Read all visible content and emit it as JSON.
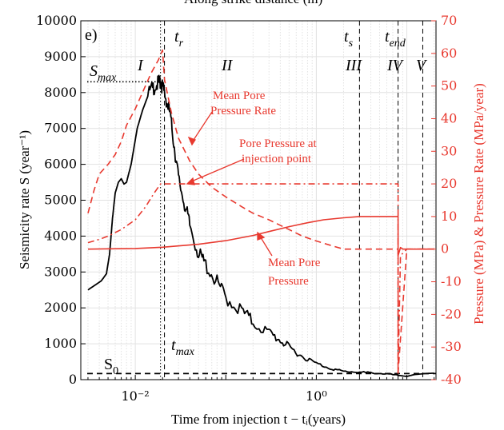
{
  "page_title_partial": "Along strike distance (m)",
  "panel_label": "e)",
  "colors": {
    "seismicity": "#000000",
    "pressure": "#e8392f",
    "grid": "#e2e2e2"
  },
  "chart_data": {
    "type": "line",
    "xlabel": "Time from injection t − tᵢ(years)",
    "ylabel_left": "Seismicity rate S (year⁻¹)",
    "ylabel_right": "Pressure (MPa) & Pressure Rate (MPa/year)",
    "x_scale": "log",
    "xlim": [
      0.0025,
      21
    ],
    "x_ticks": [
      {
        "value": 0.01,
        "label": "10⁻²"
      },
      {
        "value": 1,
        "label": "10⁰"
      }
    ],
    "ylim_left": [
      0,
      10000
    ],
    "y_ticks_left": [
      0,
      1000,
      2000,
      3000,
      4000,
      5000,
      6000,
      7000,
      8000,
      9000,
      10000
    ],
    "ylim_right": [
      -40,
      70
    ],
    "y_ticks_right": [
      -40,
      -30,
      -20,
      -10,
      0,
      10,
      20,
      30,
      40,
      50,
      60,
      70
    ],
    "grid": "on",
    "phase_labels": [
      "I",
      "II",
      "III",
      "IV",
      "V"
    ],
    "time_markers": [
      {
        "label": "t_r",
        "x": 0.021,
        "style": "dashed"
      },
      {
        "label": "t_max",
        "x": 0.019,
        "style": "dotted"
      },
      {
        "label": "t_s",
        "x": 3.0,
        "style": "dashed"
      },
      {
        "label": "t_end",
        "x": 8.0,
        "style": "dashed"
      },
      {
        "label": "",
        "x": 15.0,
        "style": "dashed"
      }
    ],
    "reference_lines": [
      {
        "label": "S_max",
        "y": 8300,
        "x_end": 0.019,
        "style": "dotted"
      },
      {
        "label": "S_0",
        "y": 170,
        "style": "dashed"
      }
    ],
    "annotations": [
      {
        "text_lines": [
          "Mean Pore",
          "Pressure Rate"
        ]
      },
      {
        "text_lines": [
          "Pore Pressure at",
          "injection point"
        ]
      },
      {
        "text_lines": [
          "Mean Pore",
          "Pressure"
        ]
      }
    ],
    "series": [
      {
        "axis": "left",
        "style": "solid",
        "x": [
          0.003,
          0.0042,
          0.0048,
          0.0052,
          0.0056,
          0.006,
          0.0065,
          0.007,
          0.0075,
          0.008,
          0.009,
          0.0105,
          0.012,
          0.014,
          0.016,
          0.018,
          0.019,
          0.02,
          0.022,
          0.024,
          0.027,
          0.03,
          0.035,
          0.04,
          0.05,
          0.06,
          0.08,
          0.1,
          0.15,
          0.2,
          0.3,
          0.4,
          0.5,
          0.7,
          1.0,
          1.5,
          2.0,
          3.0,
          4.0,
          6.0,
          8.0,
          10.0,
          12.0,
          16.0,
          20.0
        ],
        "values": [
          2500,
          2750,
          2950,
          3500,
          4500,
          5200,
          5500,
          5600,
          5450,
          5500,
          6000,
          7000,
          7500,
          7950,
          8150,
          8250,
          8300,
          8150,
          7800,
          7450,
          6500,
          5600,
          4900,
          4300,
          3500,
          3200,
          2700,
          2300,
          1900,
          1600,
          1300,
          1100,
          900,
          650,
          450,
          300,
          230,
          210,
          190,
          160,
          120,
          90,
          140,
          170,
          180
        ]
      },
      {
        "axis": "right",
        "style": "dashed",
        "x": [
          0.003,
          0.0035,
          0.004,
          0.005,
          0.006,
          0.007,
          0.008,
          0.01,
          0.012,
          0.015,
          0.018,
          0.02,
          0.021,
          0.025,
          0.03,
          0.04,
          0.05,
          0.07,
          0.1,
          0.15,
          0.2,
          0.3,
          0.5,
          0.7,
          1.0,
          1.5,
          2.0,
          3.0,
          5.0,
          8.0,
          8.01,
          10.0,
          20.0
        ],
        "values": [
          11,
          18,
          23,
          26,
          29,
          33,
          38,
          43,
          48,
          54,
          58,
          61,
          52,
          42,
          34,
          27,
          23,
          19,
          16,
          13,
          11,
          9,
          6,
          4,
          2.5,
          1,
          0,
          0,
          0,
          0,
          -38,
          0,
          0
        ]
      },
      {
        "axis": "right",
        "style": "dashdot",
        "x": [
          0.003,
          0.004,
          0.005,
          0.007,
          0.01,
          0.013,
          0.016,
          0.019,
          0.021,
          0.025,
          1.0,
          5.0,
          8.0,
          8.01,
          8.5,
          10.0,
          20.0
        ],
        "values": [
          2,
          3,
          4,
          6,
          9,
          13,
          17,
          20,
          20,
          20,
          20,
          20,
          20,
          -38,
          -2,
          0,
          0
        ]
      },
      {
        "axis": "right",
        "style": "solid",
        "x": [
          0.003,
          0.01,
          0.02,
          0.05,
          0.1,
          0.2,
          0.3,
          0.5,
          0.8,
          1.2,
          2.0,
          3.0,
          5.0,
          8.0,
          8.01,
          8.5,
          9.0,
          10.0,
          20.0
        ],
        "values": [
          0,
          0.2,
          0.6,
          1.5,
          2.6,
          4.2,
          5.4,
          6.9,
          8.1,
          9.0,
          9.6,
          10,
          10,
          10,
          -2,
          0.5,
          0,
          0,
          0
        ]
      }
    ]
  }
}
